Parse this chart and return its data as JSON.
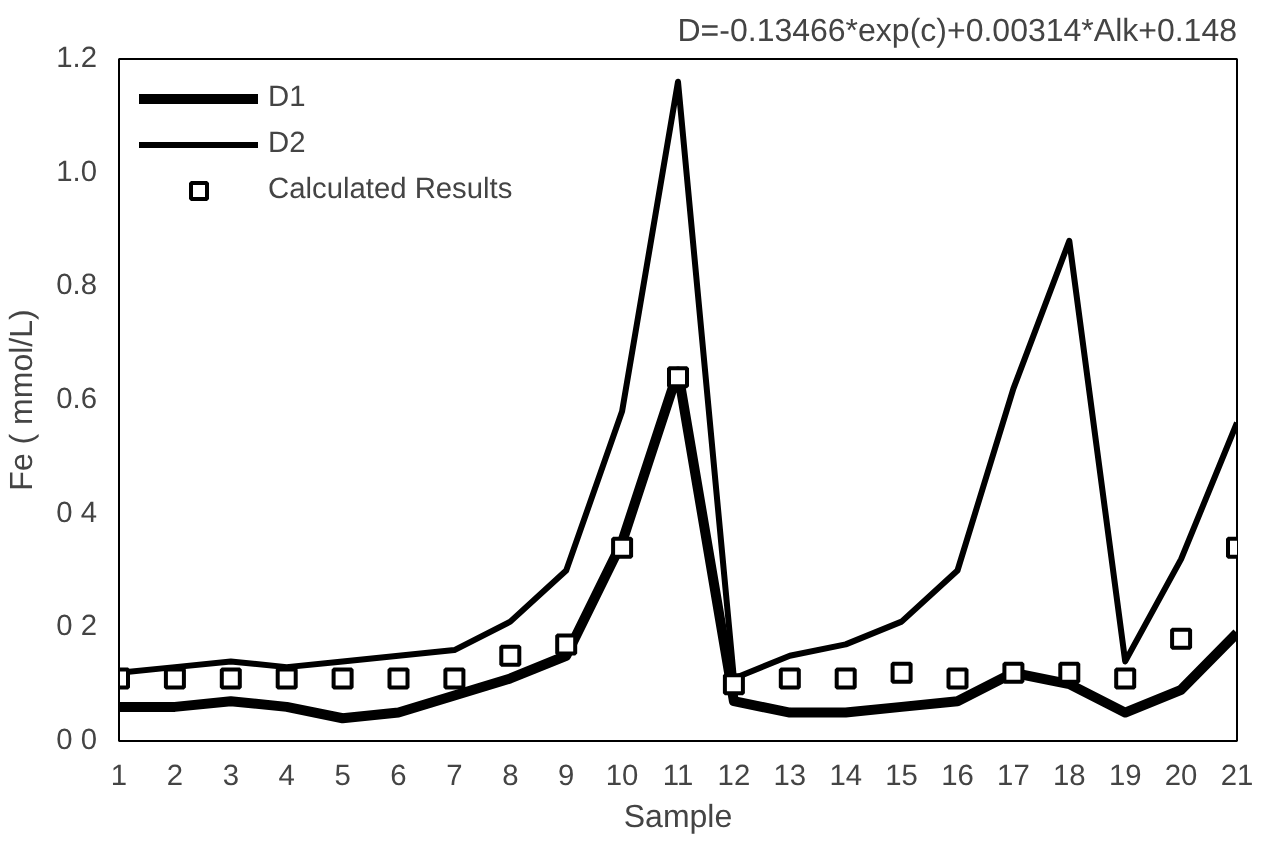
{
  "chart_data": {
    "type": "line",
    "title": "D=-0.13466*exp(c)+0.00314*Alk+0.148",
    "xlabel": "Sample",
    "ylabel": "Fe ( mmol/L)",
    "x": [
      1,
      2,
      3,
      4,
      5,
      6,
      7,
      8,
      9,
      10,
      11,
      12,
      13,
      14,
      15,
      16,
      17,
      18,
      19,
      20,
      21
    ],
    "xlim": [
      1,
      21
    ],
    "xticks": [
      1,
      2,
      3,
      4,
      5,
      6,
      7,
      8,
      9,
      10,
      11,
      12,
      13,
      14,
      15,
      16,
      17,
      18,
      19,
      20,
      21
    ],
    "ylim": [
      0,
      1.2
    ],
    "yticks": [
      {
        "value": 0,
        "label": "0 0"
      },
      {
        "value": 0.2,
        "label": "0 2"
      },
      {
        "value": 0.4,
        "label": "0 4"
      },
      {
        "value": 0.6,
        "label": "0.6"
      },
      {
        "value": 0.8,
        "label": "0.8"
      },
      {
        "value": 1.0,
        "label": "1.0"
      },
      {
        "value": 1.2,
        "label": "1.2"
      }
    ],
    "grid": false,
    "legend": "top left",
    "series": [
      {
        "name": "D1",
        "color": "#000000",
        "line_style": "solid",
        "values": [
          0.06,
          0.06,
          0.07,
          0.06,
          0.04,
          0.05,
          0.08,
          0.11,
          0.15,
          0.35,
          0.65,
          0.07,
          0.05,
          0.05,
          0.06,
          0.07,
          0.12,
          0.1,
          0.05,
          0.09,
          0.19
        ]
      },
      {
        "name": "D2",
        "color": "#000000",
        "line_style": "solid",
        "values": [
          0.12,
          0.13,
          0.14,
          0.13,
          0.14,
          0.15,
          0.16,
          0.21,
          0.3,
          0.58,
          1.16,
          0.11,
          0.15,
          0.17,
          0.21,
          0.3,
          0.62,
          0.88,
          0.14,
          0.32,
          0.56
        ]
      },
      {
        "name": "Calculated Results",
        "type": "scatter",
        "marker": "square",
        "color": "#000000",
        "values": [
          0.11,
          0.11,
          0.11,
          0.11,
          0.11,
          0.11,
          0.11,
          0.15,
          0.17,
          0.34,
          0.64,
          0.1,
          0.11,
          0.11,
          0.12,
          0.11,
          0.12,
          0.12,
          0.11,
          0.18,
          0.34
        ]
      }
    ]
  }
}
